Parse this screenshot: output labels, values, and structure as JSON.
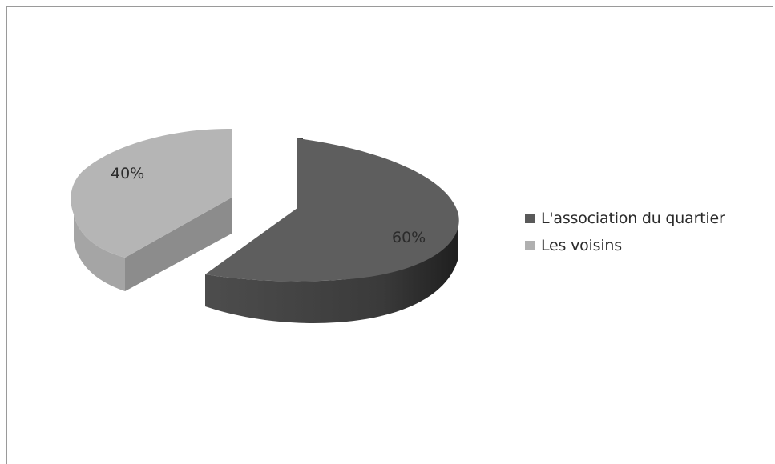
{
  "chart_data": {
    "type": "pie",
    "title": "",
    "slices": [
      {
        "label": "L'association du quartier",
        "value": 60,
        "display": "60%",
        "color": "#595959"
      },
      {
        "label": "Les voisins",
        "value": 40,
        "display": "40%",
        "color": "#b0b0b0"
      }
    ],
    "legend": {
      "position": "right",
      "items": [
        {
          "label": "L'association du quartier",
          "color": "#595959"
        },
        {
          "label": "Les voisins",
          "color": "#b0b0b0"
        }
      ]
    },
    "style": "3d-exploded"
  }
}
